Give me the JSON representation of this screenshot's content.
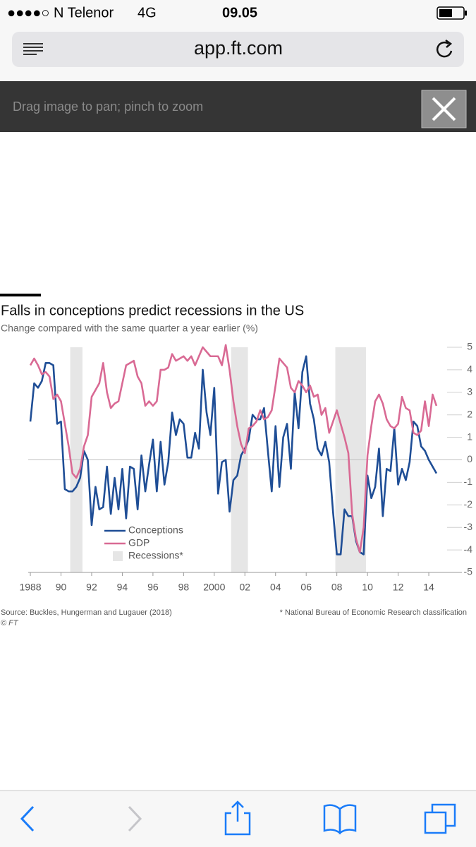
{
  "status_bar": {
    "carrier": "●●●●○ N Telenor",
    "network": "4G",
    "time": "09.05"
  },
  "browser": {
    "url": "app.ft.com",
    "zoom_hint": "Drag image to pan; pinch to zoom"
  },
  "chart_data": {
    "type": "line",
    "title": "Falls in conceptions predict recessions in the US",
    "subtitle": "Change compared with the same quarter a year earlier (%)",
    "source": "Source: Buckles, Hungerman and Lugauer (2018)",
    "note": "* National Bureau of Economic Research classification",
    "credit": "© FT",
    "x": [
      1988,
      1988.25,
      1988.5,
      1988.75,
      1989,
      1989.25,
      1989.5,
      1989.75,
      1990,
      1990.25,
      1990.5,
      1990.75,
      1991,
      1991.25,
      1991.5,
      1991.75,
      1992,
      1992.25,
      1992.5,
      1992.75,
      1993,
      1993.25,
      1993.5,
      1993.75,
      1994,
      1994.25,
      1994.5,
      1994.75,
      1995,
      1995.25,
      1995.5,
      1995.75,
      1996,
      1996.25,
      1996.5,
      1996.75,
      1997,
      1997.25,
      1997.5,
      1997.75,
      1998,
      1998.25,
      1998.5,
      1998.75,
      1999,
      1999.25,
      1999.5,
      1999.75,
      2000,
      2000.25,
      2000.5,
      2000.75,
      2001,
      2001.25,
      2001.5,
      2001.75,
      2002,
      2002.25,
      2002.5,
      2002.75,
      2003,
      2003.25,
      2003.5,
      2003.75,
      2004,
      2004.25,
      2004.5,
      2004.75,
      2005,
      2005.25,
      2005.5,
      2005.75,
      2006,
      2006.25,
      2006.5,
      2006.75,
      2007,
      2007.25,
      2007.5,
      2007.75,
      2008,
      2008.25,
      2008.5,
      2008.75,
      2009,
      2009.25,
      2009.5,
      2009.75,
      2010,
      2010.25,
      2010.5,
      2010.75,
      2011,
      2011.25,
      2011.5,
      2011.75,
      2012,
      2012.25,
      2012.5,
      2012.75,
      2013,
      2013.25,
      2013.5,
      2013.75,
      2014,
      2014.25,
      2014.5
    ],
    "series": [
      {
        "name": "Conceptions",
        "color": "#1f4e96",
        "values": [
          1.7,
          3.4,
          3.2,
          3.5,
          4.3,
          4.3,
          4.2,
          1.6,
          1.7,
          -1.3,
          -1.4,
          -1.4,
          -1.2,
          -0.8,
          0.4,
          0.0,
          -2.9,
          -1.2,
          -2.2,
          -2.1,
          -0.3,
          -2.4,
          -0.8,
          -2.2,
          -0.4,
          -2.6,
          -0.3,
          -0.4,
          -2.2,
          0.2,
          -1.4,
          -0.2,
          0.9,
          -1.4,
          0.8,
          -1.1,
          -0.1,
          2.1,
          1.1,
          1.8,
          1.6,
          0.1,
          0.1,
          1.2,
          0.5,
          4.0,
          2.1,
          1.1,
          3.2,
          -1.5,
          -0.1,
          0.0,
          -2.3,
          -0.9,
          -0.7,
          0.2,
          0.5,
          0.9,
          2.0,
          1.8,
          1.8,
          2.3,
          0.4,
          -1.4,
          1.5,
          -1.2,
          1.0,
          1.6,
          -0.4,
          3.0,
          1.4,
          3.9,
          4.6,
          2.5,
          1.8,
          0.5,
          0.2,
          0.8,
          -0.1,
          -2.3,
          -4.2,
          -4.2,
          -2.2,
          -2.5,
          -2.5,
          -3.6,
          -4.1,
          -4.2,
          -0.7,
          -1.7,
          -1.2,
          0.5,
          -2.5,
          -0.4,
          -0.5,
          1.4,
          -1.1,
          -0.4,
          -0.9,
          -0.1,
          1.7,
          1.5,
          0.6,
          0.4,
          0.0,
          -0.3,
          -0.6
        ]
      },
      {
        "name": "GDP",
        "color": "#d96a94",
        "values": [
          4.2,
          4.5,
          4.2,
          3.8,
          3.9,
          3.7,
          2.7,
          2.9,
          2.6,
          1.6,
          0.6,
          -0.6,
          -0.8,
          -0.4,
          0.6,
          1.1,
          2.8,
          3.1,
          3.4,
          4.3,
          3.0,
          2.3,
          2.5,
          2.6,
          3.4,
          4.2,
          4.3,
          4.4,
          3.7,
          3.4,
          2.4,
          2.6,
          2.4,
          2.6,
          4.0,
          4.0,
          4.1,
          4.7,
          4.4,
          4.5,
          4.6,
          4.4,
          4.6,
          4.2,
          4.6,
          5.0,
          4.8,
          4.6,
          4.6,
          4.6,
          4.2,
          5.1,
          4.0,
          2.6,
          1.5,
          0.7,
          0.3,
          1.4,
          1.5,
          1.7,
          2.2,
          1.8,
          1.9,
          2.2,
          3.3,
          4.5,
          4.3,
          4.1,
          3.2,
          3.0,
          3.5,
          3.3,
          3.0,
          3.3,
          2.8,
          2.9,
          2.0,
          2.3,
          1.2,
          1.7,
          2.2,
          1.6,
          1.0,
          0.3,
          -2.4,
          -3.5,
          -4.1,
          -3.0,
          0.2,
          1.5,
          2.6,
          2.9,
          2.5,
          1.8,
          1.5,
          1.4,
          1.6,
          2.8,
          2.3,
          2.2,
          1.2,
          1.1,
          1.3,
          2.6,
          1.5,
          2.9,
          2.4
        ]
      }
    ],
    "recessions": [
      [
        1990.6,
        1991.4
      ],
      [
        2001.1,
        2002.2
      ],
      [
        2007.9,
        2009.9
      ]
    ],
    "recession_color": "#e6e6e6",
    "recession_label": "Recessions*",
    "xlim": [
      1987.86,
      2015.47
    ],
    "xticks": [
      1988,
      {
        "value": 1990,
        "label": "90"
      },
      {
        "value": 1992,
        "label": "92"
      },
      {
        "value": 1994,
        "label": "94"
      },
      {
        "value": 1996,
        "label": "96"
      },
      {
        "value": 1998,
        "label": "98"
      },
      2000,
      {
        "value": 2002,
        "label": "02"
      },
      {
        "value": 2004,
        "label": "04"
      },
      {
        "value": 2006,
        "label": "06"
      },
      {
        "value": 2008,
        "label": "08"
      },
      {
        "value": 2010,
        "label": "10"
      },
      {
        "value": 2012,
        "label": "12"
      },
      {
        "value": 2014,
        "label": "14"
      }
    ],
    "ylim": [
      -5,
      5
    ],
    "yticks": [
      5,
      4,
      3,
      2,
      1,
      0,
      -1,
      -2,
      -3,
      -4,
      -5
    ],
    "zero_line": true
  }
}
